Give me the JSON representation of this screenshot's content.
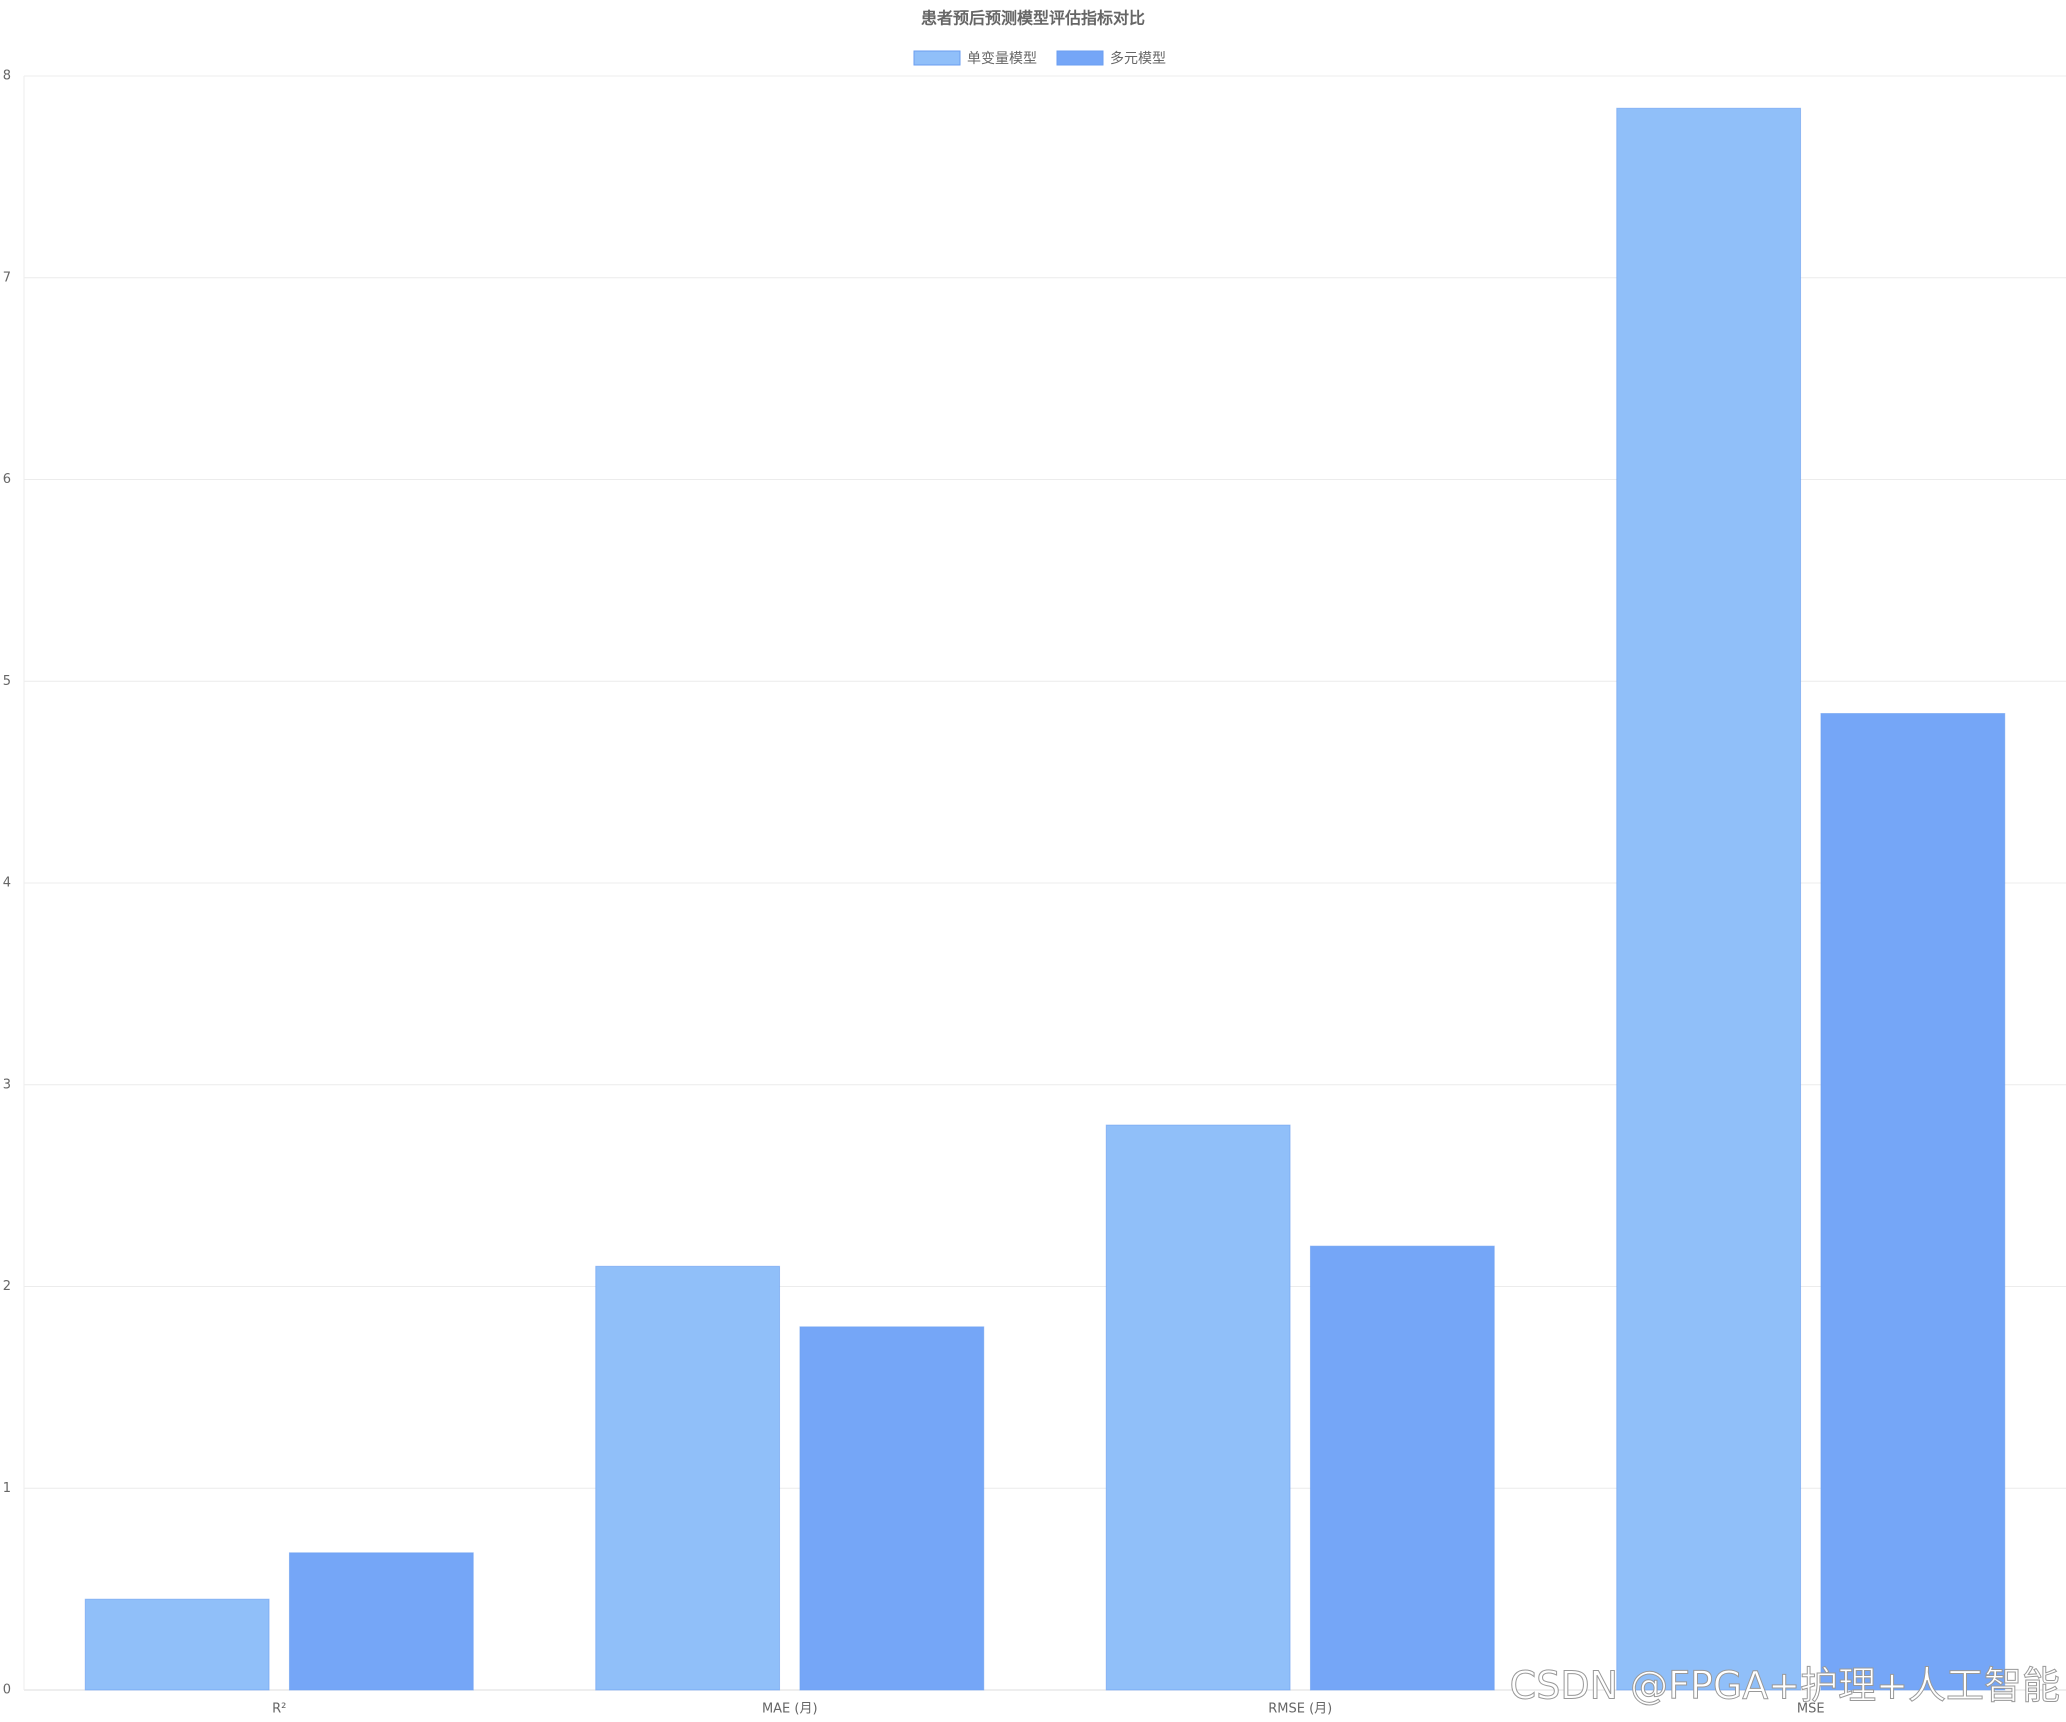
{
  "chart_data": {
    "type": "bar",
    "title": "患者预后预测模型评估指标对比",
    "categories": [
      "R²",
      "MAE (月)",
      "RMSE (月)",
      "MSE"
    ],
    "series": [
      {
        "name": "单变量模型",
        "color": "#90bff9",
        "values": [
          0.45,
          2.1,
          2.8,
          7.84
        ]
      },
      {
        "name": "多元模型",
        "color": "#75a6f7",
        "values": [
          0.68,
          1.8,
          2.2,
          4.84
        ]
      }
    ],
    "ylim": [
      0,
      8
    ],
    "yticks": [
      0,
      1,
      2,
      3,
      4,
      5,
      6,
      7,
      8
    ],
    "grid": true,
    "legend": "top"
  },
  "watermark": "CSDN @FPGA+护理+人工智能"
}
